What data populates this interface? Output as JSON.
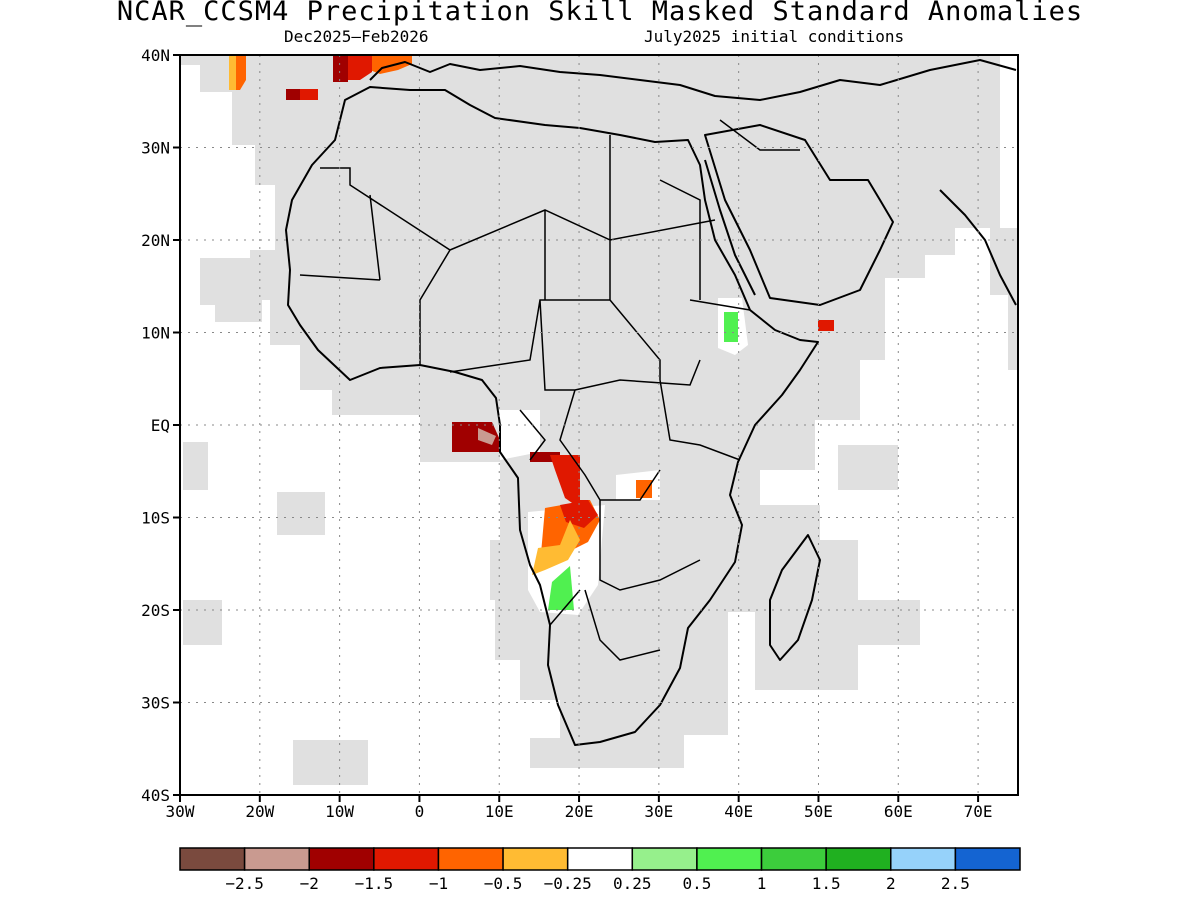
{
  "title": "NCAR_CCSM4 Precipitation Skill Masked Standard Anomalies",
  "subtitle_left": "Dec2025–Feb2026",
  "subtitle_right": "July2025 initial conditions",
  "map": {
    "lon_range": [
      -30,
      75
    ],
    "lat_range": [
      -40,
      40
    ],
    "lat_ticks": [
      "40N",
      "30N",
      "20N",
      "10N",
      "EQ",
      "10S",
      "20S",
      "30S",
      "40S"
    ],
    "lon_ticks": [
      "30W",
      "20W",
      "10W",
      "0",
      "10E",
      "20E",
      "30E",
      "40E",
      "50E",
      "60E",
      "70E"
    ],
    "gridlines": "dotted",
    "mask_color": "#e0e0e0"
  },
  "colorbar": {
    "colors": [
      "#7a4a3e",
      "#c99a90",
      "#a00000",
      "#e01800",
      "#ff6400",
      "#ffbb33",
      "#ffffff",
      "#96f08c",
      "#50f050",
      "#3ccd3c",
      "#20b020",
      "#96d2fa",
      "#1464d2"
    ],
    "labels": [
      "−2.5",
      "−2",
      "−1.5",
      "−1",
      "−0.5",
      "−0.25",
      "0.25",
      "0.5",
      "1",
      "1.5",
      "2",
      "2.5"
    ]
  }
}
